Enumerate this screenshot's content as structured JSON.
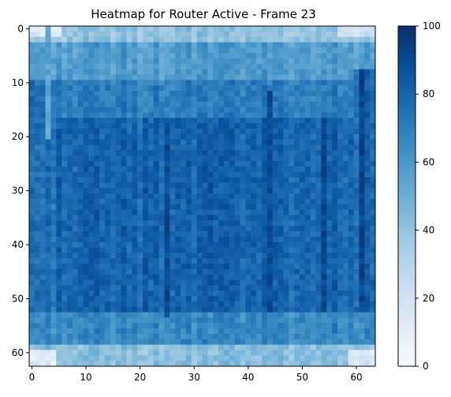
{
  "chart_data": {
    "type": "heatmap",
    "title": "Heatmap for Router Active - Frame 23",
    "xlabel": "",
    "ylabel": "",
    "rows": 63,
    "cols": 64,
    "x_ticks": [
      0,
      10,
      20,
      30,
      40,
      50,
      60
    ],
    "y_ticks": [
      0,
      10,
      20,
      30,
      40,
      50,
      60
    ],
    "value_range": [
      0,
      100
    ],
    "colormap": "Blues",
    "colors": {
      "low": "#f7fbff",
      "high": "#08306b"
    },
    "colorbar": {
      "ticks": [
        0,
        20,
        40,
        60,
        80,
        100
      ],
      "placement": "right"
    },
    "grid": false,
    "dense_matrix": {
      "region_estimates": [
        {
          "name": "top edge rows",
          "rows": [
            0,
            2
          ],
          "cols": [
            0,
            63
          ],
          "value": 40
        },
        {
          "name": "upper band",
          "rows": [
            3,
            9
          ],
          "cols": [
            0,
            63
          ],
          "value": 58
        },
        {
          "name": "transition band",
          "rows": [
            10,
            16
          ],
          "cols": [
            0,
            63
          ],
          "value": 70
        },
        {
          "name": "core",
          "rows": [
            17,
            52
          ],
          "cols": [
            5,
            59
          ],
          "value": 80
        },
        {
          "name": "left flank",
          "rows": [
            10,
            52
          ],
          "cols": [
            0,
            4
          ],
          "value": 76
        },
        {
          "name": "right flank",
          "rows": [
            8,
            52
          ],
          "cols": [
            60,
            63
          ],
          "value": 80
        },
        {
          "name": "lower band",
          "rows": [
            53,
            58
          ],
          "cols": [
            0,
            63
          ],
          "value": 66
        },
        {
          "name": "bottom edge rows",
          "rows": [
            59,
            62
          ],
          "cols": [
            0,
            63
          ],
          "value": 42
        },
        {
          "name": "top-left corner",
          "rows": [
            0,
            1
          ],
          "cols": [
            0,
            5
          ],
          "value": 15
        },
        {
          "name": "top-right corner",
          "rows": [
            0,
            1
          ],
          "cols": [
            57,
            63
          ],
          "value": 22
        },
        {
          "name": "bottom-left corner",
          "rows": [
            60,
            62
          ],
          "cols": [
            0,
            4
          ],
          "value": 12
        },
        {
          "name": "bottom-right corner",
          "rows": [
            60,
            62
          ],
          "cols": [
            59,
            63
          ],
          "value": 15
        }
      ],
      "notable_columns": [
        {
          "col": 3,
          "rows": [
            0,
            20
          ],
          "value": 52
        },
        {
          "col": 21,
          "rows": [
            17,
            52
          ],
          "value": 88
        },
        {
          "col": 25,
          "rows": [
            18,
            53
          ],
          "value": 92
        },
        {
          "col": 33,
          "rows": [
            20,
            52
          ],
          "value": 88
        },
        {
          "col": 44,
          "rows": [
            12,
            52
          ],
          "value": 90
        },
        {
          "col": 54,
          "rows": [
            17,
            52
          ],
          "value": 90
        },
        {
          "col": 61,
          "rows": [
            8,
            52
          ],
          "value": 92
        }
      ]
    }
  }
}
